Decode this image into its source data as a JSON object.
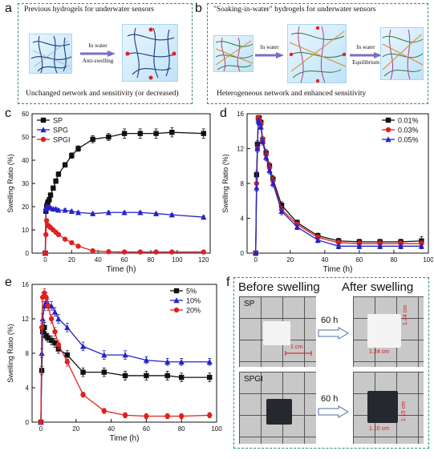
{
  "panel_labels": {
    "a": "a",
    "b": "b",
    "c": "c",
    "d": "d",
    "e": "e",
    "f": "f"
  },
  "schematic": {
    "a": {
      "title": "Previous hydrogels for underwater sensors",
      "arrow_top": "In water",
      "arrow_bottom": "Anti-swelling",
      "caption": "Unchanged network and sensitivity (or decreased)"
    },
    "b": {
      "title": "\"Soaking-in-water\" hydrogels for underwater sensors",
      "arrow1": "In water",
      "arrow2_top": "In water",
      "arrow2_bottom": "Equilibrium",
      "caption": "Heterogeneous network and enhanced sensitivity"
    }
  },
  "photo_panel": {
    "before": "Before swelling",
    "after": "After swelling",
    "row1_label": "SP",
    "row2_label": "SPGI",
    "arrow1": "60 h",
    "arrow2": "60 h",
    "scale": "1 cm",
    "sp_w": "1.24 cm",
    "sp_h": "1.24 cm",
    "spgi_w": "1.10 cm",
    "spgi_h": "1.15 cm"
  },
  "colors": {
    "black": "#111111",
    "blue": "#2323c8",
    "red": "#e02020",
    "frame": "#2f8f72"
  },
  "chart_data": [
    {
      "id": "c",
      "type": "line",
      "xlabel": "Time (h)",
      "ylabel": "Swelling Ratio (%)",
      "xlim": [
        -10,
        125
      ],
      "ylim": [
        0,
        60
      ],
      "xticks": [
        0,
        20,
        40,
        60,
        80,
        100,
        120
      ],
      "yticks": [
        0,
        10,
        20,
        30,
        40,
        50,
        60
      ],
      "legend": "top-left",
      "series": [
        {
          "name": "SP",
          "color": "#111111",
          "marker": "square",
          "x": [
            0,
            0.5,
            1,
            1.5,
            2,
            3,
            4,
            6,
            8,
            10,
            15,
            20,
            25,
            36,
            48,
            60,
            72,
            84,
            96,
            120
          ],
          "y": [
            0,
            18,
            20,
            21,
            22,
            23,
            25,
            28,
            31,
            34,
            38,
            42,
            45,
            49,
            50,
            51.5,
            51.5,
            51.5,
            52,
            51.5
          ],
          "err": [
            0,
            0.5,
            0.5,
            0.5,
            0.6,
            0.6,
            0.8,
            0.8,
            1,
            1,
            1,
            1.2,
            1.2,
            1.5,
            1.5,
            2,
            2,
            2,
            2,
            2
          ]
        },
        {
          "name": "SPG",
          "color": "#2323c8",
          "marker": "triangle",
          "x": [
            0,
            0.5,
            1,
            2,
            3,
            4,
            6,
            8,
            10,
            15,
            20,
            25,
            36,
            48,
            60,
            72,
            84,
            96,
            120
          ],
          "y": [
            0,
            19,
            20,
            20,
            19.5,
            19.5,
            19,
            19,
            18.5,
            18.5,
            18,
            17.5,
            17,
            17.5,
            17.5,
            17.5,
            17,
            16.5,
            15.5
          ],
          "err": [
            0,
            0.6,
            0.6,
            0.6,
            0.6,
            0.6,
            0.6,
            0.6,
            0.6,
            0.6,
            0.6,
            0.6,
            0.6,
            0.6,
            0.6,
            0.6,
            0.6,
            0.6,
            0.6
          ]
        },
        {
          "name": "SPGI",
          "color": "#e02020",
          "marker": "circle",
          "x": [
            0,
            0.5,
            1,
            2,
            3,
            4,
            6,
            8,
            10,
            15,
            20,
            25,
            36,
            48,
            60,
            72,
            84,
            96,
            120
          ],
          "y": [
            0,
            8,
            14,
            12,
            11.5,
            11,
            10,
            9,
            8,
            6,
            4.5,
            3,
            1,
            0.6,
            0.5,
            0.5,
            0.5,
            0.5,
            0.5
          ],
          "err": [
            0,
            0.5,
            0.8,
            0.6,
            0.6,
            0.6,
            0.5,
            0.5,
            0.5,
            0.5,
            0.4,
            0.4,
            0.3,
            0.2,
            0.2,
            0.2,
            0.2,
            0.2,
            0.2
          ]
        }
      ]
    },
    {
      "id": "d",
      "type": "line",
      "xlabel": "Time (h)",
      "ylabel": "Swelling Ratio (%)",
      "xlim": [
        -5,
        100
      ],
      "ylim": [
        0,
        16
      ],
      "xticks": [
        0,
        20,
        40,
        60,
        80,
        100
      ],
      "yticks": [
        0,
        4,
        8,
        12,
        16
      ],
      "legend": "top-right",
      "series": [
        {
          "name": "0.01%",
          "color": "#111111",
          "marker": "square",
          "x": [
            0,
            0.5,
            1,
            1.5,
            2,
            3,
            4,
            6,
            8,
            10,
            15,
            24,
            36,
            48,
            60,
            72,
            84,
            96
          ],
          "y": [
            0,
            9,
            12.5,
            15.5,
            15.5,
            15,
            13,
            11.5,
            10,
            8.5,
            5.5,
            3.5,
            2,
            1.4,
            1.3,
            1.3,
            1.3,
            1.4
          ],
          "err": [
            0,
            0.4,
            0.4,
            0.3,
            0.3,
            0.3,
            0.4,
            0.4,
            0.4,
            0.4,
            0.4,
            0.3,
            0.3,
            0.3,
            0.3,
            0.3,
            0.3,
            0.5
          ]
        },
        {
          "name": "0.03%",
          "color": "#e02020",
          "marker": "circle",
          "x": [
            0,
            0.5,
            1,
            1.5,
            2,
            3,
            4,
            6,
            8,
            10,
            15,
            24,
            36,
            48,
            60,
            72,
            84,
            96
          ],
          "y": [
            0,
            8,
            12,
            15.5,
            15.3,
            14.8,
            13,
            11.3,
            9.8,
            8.3,
            5,
            3.3,
            1.8,
            1.2,
            1.1,
            1.1,
            1.1,
            1.1
          ],
          "err": [
            0,
            0.4,
            0.4,
            0.3,
            0.3,
            0.3,
            0.4,
            0.4,
            0.4,
            0.4,
            0.4,
            0.3,
            0.3,
            0.3,
            0.3,
            0.3,
            0.3,
            0.3
          ]
        },
        {
          "name": "0.05%",
          "color": "#2323c8",
          "marker": "triangle",
          "x": [
            0,
            0.5,
            1,
            1.5,
            2,
            3,
            4,
            6,
            8,
            10,
            15,
            24,
            36,
            48,
            60,
            72,
            84,
            96
          ],
          "y": [
            0,
            7.5,
            12,
            15.2,
            15,
            14.5,
            12.8,
            11,
            9.5,
            8,
            4.8,
            3,
            1.5,
            0.8,
            0.8,
            0.8,
            0.8,
            0.8
          ],
          "err": [
            0,
            0.4,
            0.4,
            0.3,
            0.3,
            0.3,
            0.4,
            0.4,
            0.4,
            0.4,
            0.4,
            0.3,
            0.3,
            0.3,
            0.3,
            0.3,
            0.3,
            0.3
          ]
        }
      ]
    },
    {
      "id": "e",
      "type": "line",
      "xlabel": "Time (h)",
      "ylabel": "Swelling Ratio (%)",
      "xlim": [
        -5,
        100
      ],
      "ylim": [
        0,
        16
      ],
      "xticks": [
        0,
        20,
        40,
        60,
        80,
        100
      ],
      "yticks": [
        0,
        4,
        8,
        12,
        16
      ],
      "legend": "top-right",
      "series": [
        {
          "name": "5%",
          "color": "#111111",
          "marker": "square",
          "x": [
            0,
            0.5,
            1,
            2,
            3,
            4,
            6,
            8,
            10,
            15,
            24,
            36,
            48,
            60,
            72,
            80,
            96
          ],
          "y": [
            0,
            6,
            10.5,
            11,
            10,
            9.8,
            9.5,
            9.2,
            8.5,
            7.8,
            5.8,
            5.8,
            5.4,
            5.4,
            5.4,
            5.2,
            5.2
          ],
          "err": [
            0,
            0.5,
            0.6,
            0.6,
            0.5,
            0.5,
            0.5,
            0.5,
            0.5,
            0.5,
            0.5,
            0.5,
            0.5,
            0.5,
            0.5,
            0.5,
            0.5
          ]
        },
        {
          "name": "10%",
          "color": "#2323c8",
          "marker": "triangle",
          "x": [
            0,
            0.5,
            1,
            2,
            3,
            4,
            6,
            8,
            10,
            15,
            24,
            36,
            48,
            60,
            72,
            80,
            96
          ],
          "y": [
            0,
            8,
            12,
            13.5,
            14,
            13.8,
            13.5,
            12.8,
            12,
            11,
            8.8,
            7.8,
            7.8,
            7.2,
            7,
            7,
            7
          ],
          "err": [
            0,
            0.5,
            0.6,
            0.5,
            0.5,
            0.5,
            0.5,
            0.5,
            0.5,
            0.5,
            0.5,
            0.5,
            0.5,
            0.4,
            0.4,
            0.4,
            0.4
          ]
        },
        {
          "name": "20%",
          "color": "#e02020",
          "marker": "circle",
          "x": [
            0,
            0.5,
            1,
            2,
            3,
            4,
            6,
            8,
            10,
            15,
            24,
            36,
            48,
            60,
            72,
            80,
            96
          ],
          "y": [
            0,
            11,
            14.5,
            15,
            14.5,
            13.5,
            12,
            10.5,
            9,
            7,
            3.2,
            1.3,
            0.8,
            0.7,
            0.7,
            0.7,
            0.8
          ],
          "err": [
            0,
            0.5,
            0.5,
            0.5,
            0.5,
            0.5,
            0.5,
            0.5,
            0.5,
            0.5,
            0.3,
            0.3,
            0.3,
            0.3,
            0.3,
            0.3,
            0.3
          ]
        }
      ]
    }
  ]
}
